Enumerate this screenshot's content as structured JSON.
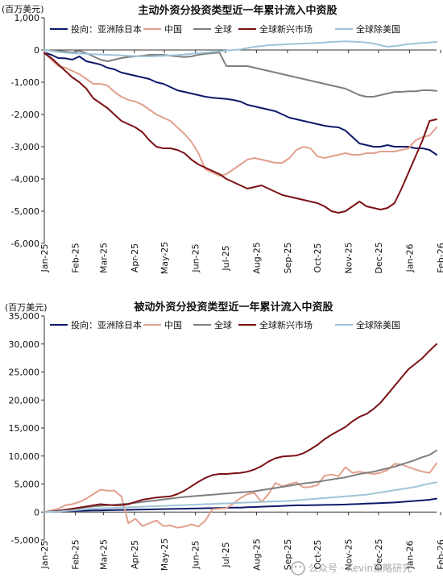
{
  "chart_data": [
    {
      "type": "line",
      "title": "主动外资分投资类型近一年累计流入中资股",
      "unit": "(百万美元)",
      "ylim": [
        -6000,
        1000
      ],
      "yticks": [
        1000,
        0,
        -1000,
        -2000,
        -3000,
        -4000,
        -5000,
        -6000
      ],
      "ytick_labels": [
        "1,000",
        "0",
        "-1,000",
        "-2,000",
        "-3,000",
        "-4,000",
        "-5,000",
        "-6,000"
      ],
      "xlim": [
        0,
        56
      ],
      "xticks": [
        0,
        4.43,
        8.43,
        12.86,
        17.14,
        21.57,
        25.86,
        30.29,
        34.71,
        39.0,
        43.43,
        47.71,
        52.14,
        56.57
      ],
      "xtick_labels": [
        "Jan-25",
        "Feb-25",
        "Mar-25",
        "Apr-25",
        "May-25",
        "Jun-25",
        "Jul-25",
        "Aug-25",
        "Sep-25",
        "Oct-25",
        "Nov-25",
        "Dec-25",
        "Jan-26",
        "Feb-26"
      ],
      "legend_position": "top",
      "grid": false,
      "series": [
        {
          "name": "投向：亚洲除日本",
          "color": "#0d1a6b",
          "width": 2.0,
          "values": [
            -80,
            -150,
            -250,
            -260,
            -300,
            -200,
            -350,
            -400,
            -450,
            -550,
            -600,
            -700,
            -750,
            -800,
            -850,
            -900,
            -1000,
            -1050,
            -1150,
            -1250,
            -1300,
            -1350,
            -1400,
            -1450,
            -1480,
            -1500,
            -1520,
            -1550,
            -1600,
            -1700,
            -1750,
            -1800,
            -1850,
            -1900,
            -2000,
            -2100,
            -2150,
            -2200,
            -2250,
            -2300,
            -2350,
            -2380,
            -2400,
            -2500,
            -2700,
            -2900,
            -2950,
            -3000,
            -3000,
            -2950,
            -3000,
            -3000,
            -3000,
            -3050,
            -3050,
            -3100,
            -3250
          ]
        },
        {
          "name": "中国",
          "color": "#e2a08c",
          "width": 2.0,
          "values": [
            -80,
            -300,
            -500,
            -550,
            -650,
            -750,
            -900,
            -1050,
            -1050,
            -1100,
            -1300,
            -1450,
            -1550,
            -1600,
            -1700,
            -1850,
            -2000,
            -2100,
            -2200,
            -2400,
            -2600,
            -2850,
            -3200,
            -3700,
            -3800,
            -3900,
            -3850,
            -3700,
            -3550,
            -3400,
            -3350,
            -3400,
            -3450,
            -3500,
            -3500,
            -3350,
            -3100,
            -3000,
            -3050,
            -3300,
            -3350,
            -3300,
            -3250,
            -3200,
            -3250,
            -3250,
            -3200,
            -3200,
            -3150,
            -3150,
            -3150,
            -3100,
            -3050,
            -2800,
            -2700,
            -2650,
            -2400
          ]
        },
        {
          "name": "全球",
          "color": "#7f7f7f",
          "width": 2.0,
          "values": [
            0,
            -20,
            -30,
            -50,
            -80,
            -30,
            -100,
            -200,
            -300,
            -350,
            -300,
            -250,
            -220,
            -200,
            -180,
            -150,
            -150,
            -150,
            -180,
            -200,
            -220,
            -200,
            -150,
            -120,
            -100,
            -80,
            -500,
            -500,
            -500,
            -500,
            -550,
            -600,
            -650,
            -700,
            -750,
            -800,
            -850,
            -900,
            -950,
            -1000,
            -1050,
            -1100,
            -1150,
            -1200,
            -1300,
            -1400,
            -1450,
            -1450,
            -1400,
            -1350,
            -1300,
            -1300,
            -1280,
            -1280,
            -1250,
            -1250,
            -1270
          ]
        },
        {
          "name": "全球新兴市场",
          "color": "#7b1116",
          "width": 2.0,
          "values": [
            -100,
            -250,
            -450,
            -650,
            -850,
            -1000,
            -1200,
            -1500,
            -1650,
            -1800,
            -2000,
            -2200,
            -2300,
            -2400,
            -2550,
            -2800,
            -3000,
            -3050,
            -3050,
            -3100,
            -3200,
            -3400,
            -3550,
            -3650,
            -3750,
            -3850,
            -4000,
            -4100,
            -4200,
            -4300,
            -4250,
            -4200,
            -4300,
            -4400,
            -4500,
            -4550,
            -4600,
            -4650,
            -4700,
            -4750,
            -4850,
            -5000,
            -5050,
            -5000,
            -4850,
            -4700,
            -4850,
            -4900,
            -4950,
            -4900,
            -4750,
            -4300,
            -3800,
            -3300,
            -2800,
            -2200,
            -2150
          ]
        },
        {
          "name": "全球除美国",
          "color": "#9fc4d8",
          "width": 2.0,
          "values": [
            0,
            -30,
            -60,
            -80,
            -100,
            -110,
            -120,
            -130,
            -140,
            -150,
            -160,
            -170,
            -180,
            -190,
            -200,
            -200,
            -190,
            -180,
            -170,
            -160,
            -140,
            -120,
            -100,
            -80,
            -60,
            -40,
            -20,
            0,
            20,
            60,
            100,
            120,
            150,
            160,
            170,
            180,
            190,
            200,
            210,
            220,
            230,
            250,
            260,
            270,
            260,
            250,
            230,
            200,
            150,
            100,
            120,
            150,
            180,
            200,
            220,
            230,
            250
          ]
        }
      ]
    },
    {
      "type": "line",
      "title": "被动外资分投资类型近一年累计流入中资股",
      "unit": "(百万美元)",
      "ylim": [
        -5000,
        35000
      ],
      "yticks": [
        35000,
        30000,
        25000,
        20000,
        15000,
        10000,
        5000,
        0,
        -5000
      ],
      "ytick_labels": [
        "35,000",
        "30,000",
        "25,000",
        "20,000",
        "15,000",
        "10,000",
        "5,000",
        "0",
        "-5,000"
      ],
      "xlim": [
        0,
        56
      ],
      "xticks": [
        0,
        4.43,
        8.43,
        12.86,
        17.14,
        21.57,
        25.86,
        30.29,
        34.71,
        39.0,
        43.43,
        47.71,
        52.14,
        56.57
      ],
      "xtick_labels": [
        "Jan-25",
        "Feb-25",
        "Mar-25",
        "Apr-25",
        "May-25",
        "Jun-25",
        "Jul-25",
        "Aug-25",
        "Sep-25",
        "Oct-25",
        "Nov-25",
        "Dec-25",
        "Jan-26",
        "Feb-26"
      ],
      "legend_position": "top",
      "grid": false,
      "series": [
        {
          "name": "投向：亚洲除日本",
          "color": "#0d1a6b",
          "width": 2.0,
          "values": [
            0,
            50,
            100,
            150,
            200,
            220,
            250,
            280,
            300,
            320,
            350,
            380,
            400,
            420,
            450,
            470,
            500,
            520,
            550,
            580,
            600,
            620,
            650,
            680,
            700,
            720,
            750,
            780,
            800,
            850,
            900,
            950,
            1000,
            1050,
            1100,
            1150,
            1200,
            1200,
            1220,
            1250,
            1280,
            1300,
            1320,
            1350,
            1400,
            1450,
            1500,
            1550,
            1600,
            1650,
            1700,
            1800,
            1900,
            2000,
            2100,
            2200,
            2400
          ]
        },
        {
          "name": "中国",
          "color": "#e2a08c",
          "width": 2.0,
          "values": [
            0,
            300,
            600,
            1200,
            1400,
            1800,
            2400,
            3200,
            4000,
            3800,
            3800,
            2800,
            -2000,
            -1200,
            -2500,
            -2000,
            -1500,
            -2500,
            -2400,
            -2800,
            -2600,
            -2200,
            -2600,
            -1500,
            500,
            600,
            700,
            1500,
            2500,
            3200,
            3400,
            1800,
            3200,
            5200,
            4600,
            5000,
            5300,
            4400,
            4500,
            4800,
            6500,
            6700,
            6400,
            8000,
            7000,
            7200,
            7000,
            6800,
            7000,
            7500,
            8600,
            8500,
            8000,
            7600,
            7200,
            7000,
            8700
          ]
        },
        {
          "name": "全球",
          "color": "#7f7f7f",
          "width": 2.0,
          "values": [
            0,
            100,
            250,
            400,
            550,
            700,
            850,
            1000,
            1100,
            1200,
            1300,
            1400,
            1500,
            1650,
            1800,
            1950,
            2100,
            2250,
            2400,
            2550,
            2700,
            2800,
            2900,
            3000,
            3100,
            3200,
            3300,
            3400,
            3500,
            3600,
            3700,
            3900,
            4100,
            4300,
            4500,
            4700,
            4900,
            5100,
            5250,
            5400,
            5600,
            5800,
            6000,
            6200,
            6500,
            6800,
            7000,
            7200,
            7500,
            7800,
            8100,
            8500,
            8900,
            9300,
            9800,
            10200,
            11000
          ]
        },
        {
          "name": "全球新兴市场",
          "color": "#7b1116",
          "width": 2.0,
          "values": [
            0,
            100,
            200,
            400,
            600,
            800,
            1000,
            1200,
            1400,
            1300,
            1200,
            1250,
            1400,
            1800,
            2200,
            2400,
            2600,
            2700,
            2800,
            3200,
            3800,
            4600,
            5400,
            6100,
            6600,
            6800,
            6800,
            6900,
            7000,
            7200,
            7600,
            8200,
            9000,
            9600,
            9900,
            10000,
            10100,
            10500,
            11200,
            12000,
            13000,
            13800,
            14500,
            15200,
            16200,
            17000,
            17500,
            18400,
            19500,
            21000,
            22500,
            24000,
            25500,
            26500,
            27500,
            28800,
            30000
          ]
        },
        {
          "name": "全球除美国",
          "color": "#9fc4d8",
          "width": 2.0,
          "values": [
            0,
            50,
            100,
            200,
            300,
            400,
            500,
            600,
            650,
            700,
            750,
            800,
            850,
            900,
            950,
            1000,
            1050,
            1100,
            1150,
            1200,
            1250,
            1300,
            1350,
            1400,
            1450,
            1500,
            1550,
            1600,
            1650,
            1700,
            1750,
            1800,
            1850,
            1900,
            1950,
            2000,
            2100,
            2200,
            2300,
            2400,
            2500,
            2600,
            2700,
            2800,
            2900,
            3000,
            3100,
            3300,
            3500,
            3700,
            3900,
            4100,
            4300,
            4500,
            4800,
            5100,
            5300
          ]
        }
      ]
    }
  ],
  "watermark": {
    "icon": "wechat-official-account-icon",
    "text": "公众号 · Kevin策略研究"
  }
}
